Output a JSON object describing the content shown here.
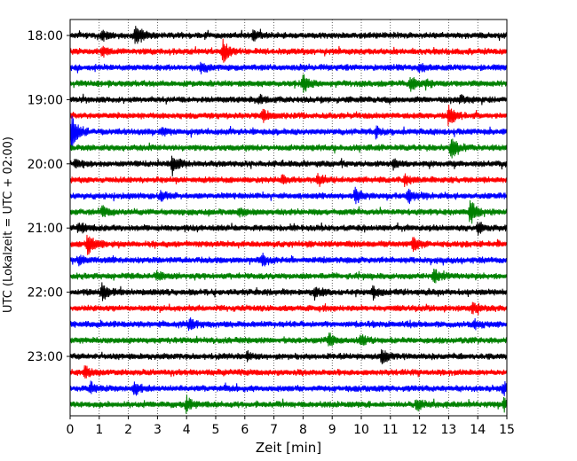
{
  "chart_data": {
    "type": "line",
    "xlabel": "Zeit  [min]",
    "ylabel": "UTC (Lokalzeit = UTC + 02:00)",
    "xlim": [
      0,
      15
    ],
    "x_ticks": [
      0,
      1,
      2,
      3,
      4,
      5,
      6,
      7,
      8,
      9,
      10,
      11,
      12,
      13,
      14,
      15
    ],
    "x_tick_labels": [
      "0",
      "1",
      "2",
      "3",
      "4",
      "5",
      "6",
      "7",
      "8",
      "9",
      "10",
      "11",
      "12",
      "13",
      "14",
      "15"
    ],
    "y_tick_labels": [
      "18:00",
      "19:00",
      "20:00",
      "21:00",
      "22:00",
      "23:00"
    ],
    "y_tick_trace_index": [
      0,
      4,
      8,
      12,
      16,
      20
    ],
    "grid": "vertical dotted lines at each minute",
    "trace_minutes": 15,
    "trace_colors": [
      "#000000",
      "#ff0000",
      "#0000ff",
      "#008000"
    ],
    "traces": [
      {
        "start": "18:00",
        "color": "#000000",
        "events": [
          [
            2.25,
            0.9
          ],
          [
            1.1,
            0.3
          ],
          [
            6.3,
            0.4
          ]
        ]
      },
      {
        "start": "18:15",
        "color": "#ff0000",
        "events": [
          [
            5.25,
            0.9
          ],
          [
            1.1,
            0.3
          ]
        ]
      },
      {
        "start": "18:30",
        "color": "#0000ff",
        "events": [
          [
            4.5,
            0.4
          ],
          [
            12.0,
            0.3
          ]
        ]
      },
      {
        "start": "18:45",
        "color": "#008000",
        "events": [
          [
            8.0,
            0.6
          ],
          [
            11.7,
            0.5
          ],
          [
            12.2,
            0.3
          ]
        ]
      },
      {
        "start": "19:00",
        "color": "#000000",
        "events": [
          [
            6.5,
            0.3
          ],
          [
            13.4,
            0.3
          ]
        ]
      },
      {
        "start": "19:15",
        "color": "#ff0000",
        "events": [
          [
            13.0,
            0.9
          ],
          [
            6.6,
            0.4
          ]
        ]
      },
      {
        "start": "19:30",
        "color": "#0000ff",
        "events": [
          [
            0.05,
            1.5
          ],
          [
            3.1,
            0.3
          ],
          [
            10.5,
            0.4
          ]
        ]
      },
      {
        "start": "19:45",
        "color": "#008000",
        "events": [
          [
            13.1,
            0.8
          ]
        ]
      },
      {
        "start": "20:00",
        "color": "#000000",
        "events": [
          [
            3.5,
            0.8
          ],
          [
            0.2,
            0.4
          ],
          [
            11.1,
            0.3
          ]
        ]
      },
      {
        "start": "20:15",
        "color": "#ff0000",
        "events": [
          [
            8.5,
            0.5
          ],
          [
            11.5,
            0.4
          ],
          [
            7.3,
            0.3
          ]
        ]
      },
      {
        "start": "20:30",
        "color": "#0000ff",
        "events": [
          [
            9.8,
            0.6
          ],
          [
            11.6,
            0.5
          ],
          [
            3.1,
            0.3
          ]
        ]
      },
      {
        "start": "20:45",
        "color": "#008000",
        "events": [
          [
            13.75,
            1.1
          ],
          [
            1.1,
            0.4
          ],
          [
            5.8,
            0.3
          ]
        ]
      },
      {
        "start": "21:00",
        "color": "#000000",
        "events": [
          [
            14.0,
            0.5
          ],
          [
            0.3,
            0.4
          ]
        ]
      },
      {
        "start": "21:15",
        "color": "#ff0000",
        "events": [
          [
            0.6,
            0.9
          ],
          [
            11.8,
            0.5
          ]
        ]
      },
      {
        "start": "21:30",
        "color": "#0000ff",
        "events": [
          [
            6.6,
            0.4
          ],
          [
            0.3,
            0.3
          ]
        ]
      },
      {
        "start": "21:45",
        "color": "#008000",
        "events": [
          [
            12.5,
            0.5
          ],
          [
            3.0,
            0.3
          ]
        ]
      },
      {
        "start": "22:00",
        "color": "#000000",
        "events": [
          [
            1.1,
            0.7
          ],
          [
            8.4,
            0.5
          ],
          [
            10.4,
            0.4
          ]
        ]
      },
      {
        "start": "22:15",
        "color": "#ff0000",
        "events": [
          [
            13.8,
            0.4
          ]
        ]
      },
      {
        "start": "22:30",
        "color": "#0000ff",
        "events": [
          [
            4.1,
            0.4
          ],
          [
            13.9,
            0.3
          ]
        ]
      },
      {
        "start": "22:45",
        "color": "#008000",
        "events": [
          [
            8.9,
            0.5
          ],
          [
            10.0,
            0.4
          ]
        ]
      },
      {
        "start": "23:00",
        "color": "#000000",
        "events": [
          [
            10.7,
            0.5
          ],
          [
            6.1,
            0.3
          ]
        ]
      },
      {
        "start": "23:15",
        "color": "#ff0000",
        "events": [
          [
            0.5,
            0.4
          ]
        ]
      },
      {
        "start": "23:30",
        "color": "#0000ff",
        "events": [
          [
            2.2,
            0.6
          ],
          [
            0.7,
            0.5
          ],
          [
            14.9,
            0.4
          ]
        ]
      },
      {
        "start": "23:45",
        "color": "#008000",
        "events": [
          [
            4.0,
            0.6
          ],
          [
            11.9,
            0.5
          ],
          [
            14.9,
            0.4
          ]
        ]
      }
    ]
  }
}
